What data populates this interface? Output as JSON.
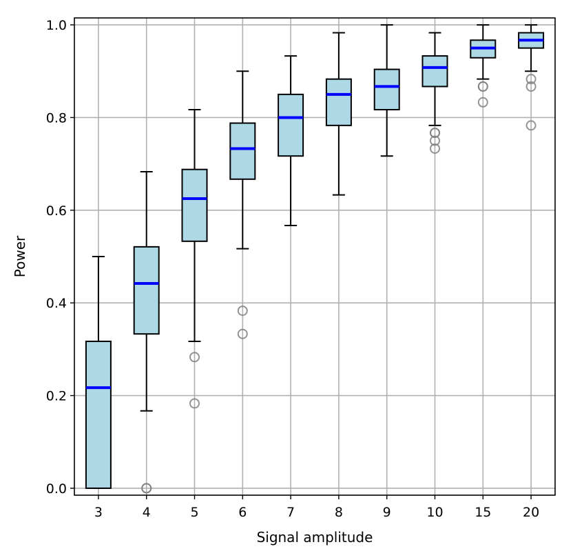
{
  "chart_data": {
    "type": "box",
    "xlabel": "Signal amplitude",
    "ylabel": "Power",
    "ylim": [
      -0.015,
      1.015
    ],
    "yticks": [
      "0.0",
      "0.2",
      "0.4",
      "0.6",
      "0.8",
      "1.0"
    ],
    "grid": true,
    "colors": {
      "box_fill": "#add8e6",
      "median": "#0000ff",
      "outlier": "#808080",
      "outlier_dark": "#404040"
    },
    "categories": [
      "3",
      "4",
      "5",
      "6",
      "7",
      "8",
      "9",
      "10",
      "15",
      "20"
    ],
    "boxes": [
      {
        "whisker_low": 0.0,
        "q1": 0.0,
        "median": 0.217,
        "q3": 0.317,
        "whisker_high": 0.5,
        "outliers": []
      },
      {
        "whisker_low": 0.167,
        "q1": 0.333,
        "median": 0.442,
        "q3": 0.521,
        "whisker_high": 0.683,
        "outliers": [
          0.0,
          0.0
        ]
      },
      {
        "whisker_low": 0.317,
        "q1": 0.533,
        "median": 0.625,
        "q3": 0.688,
        "whisker_high": 0.817,
        "outliers": [
          0.283,
          0.183
        ]
      },
      {
        "whisker_low": 0.517,
        "q1": 0.667,
        "median": 0.733,
        "q3": 0.788,
        "whisker_high": 0.9,
        "outliers": [
          0.383,
          0.333
        ]
      },
      {
        "whisker_low": 0.567,
        "q1": 0.717,
        "median": 0.8,
        "q3": 0.85,
        "whisker_high": 0.933,
        "outliers": []
      },
      {
        "whisker_low": 0.633,
        "q1": 0.783,
        "median": 0.85,
        "q3": 0.883,
        "whisker_high": 0.983,
        "outliers": []
      },
      {
        "whisker_low": 0.717,
        "q1": 0.817,
        "median": 0.867,
        "q3": 0.904,
        "whisker_high": 1.0,
        "outliers": []
      },
      {
        "whisker_low": 0.783,
        "q1": 0.867,
        "median": 0.908,
        "q3": 0.933,
        "whisker_high": 0.983,
        "outliers": [
          0.767,
          0.767,
          0.75,
          0.733
        ]
      },
      {
        "whisker_low": 0.883,
        "q1": 0.929,
        "median": 0.95,
        "q3": 0.967,
        "whisker_high": 1.0,
        "outliers": [
          0.867,
          0.867,
          0.833
        ]
      },
      {
        "whisker_low": 0.9,
        "q1": 0.95,
        "median": 0.967,
        "q3": 0.983,
        "whisker_high": 1.0,
        "outliers": [
          0.883,
          0.867,
          0.783
        ]
      }
    ]
  }
}
